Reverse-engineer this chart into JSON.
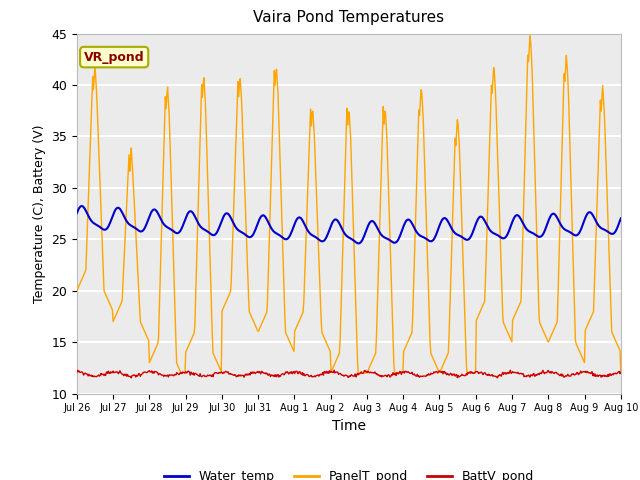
{
  "title": "Vaira Pond Temperatures",
  "xlabel": "Time",
  "ylabel": "Temperature (C), Battery (V)",
  "ylim": [
    10,
    45
  ],
  "yticks": [
    10,
    15,
    20,
    25,
    30,
    35,
    40,
    45
  ],
  "annotation_text": "VR_pond",
  "annotation_color": "#8B0000",
  "annotation_bg": "#FFFFCC",
  "annotation_edge": "#AAAA00",
  "water_temp_color": "#0000CC",
  "panel_temp_color": "#FFA500",
  "batt_color": "#CC0000",
  "plot_bg": "#EBEBEB",
  "legend_labels": [
    "Water_temp",
    "PanelT_pond",
    "BattV_pond"
  ],
  "xtick_labels": [
    "Jul 26",
    "Jul 27",
    "Jul 28",
    "Jul 29",
    "Jul 30",
    "Jul 31",
    "Aug 1",
    "Aug 2",
    "Aug 3",
    "Aug 4",
    "Aug 5",
    "Aug 6",
    "Aug 7",
    "Aug 8",
    "Aug 9",
    "Aug 10"
  ],
  "figsize": [
    6.4,
    4.8
  ],
  "dpi": 100
}
